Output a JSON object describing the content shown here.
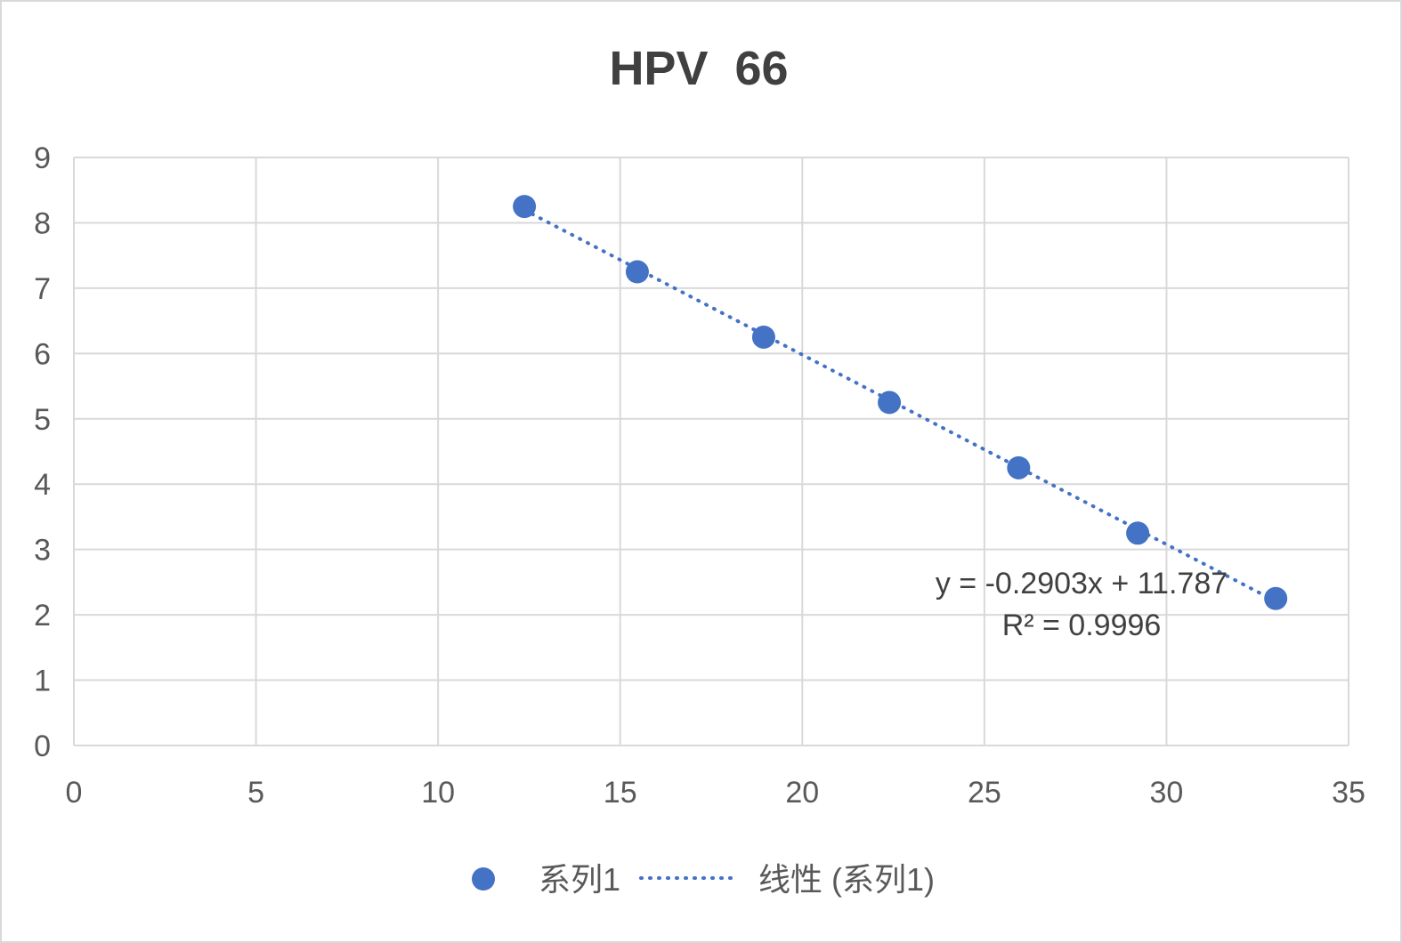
{
  "chart_data": {
    "type": "scatter",
    "title": "HPV  66",
    "xlim": [
      0,
      35
    ],
    "ylim": [
      0,
      9
    ],
    "x_ticks": [
      0,
      5,
      10,
      15,
      20,
      25,
      30,
      35
    ],
    "y_ticks": [
      0,
      1,
      2,
      3,
      4,
      5,
      6,
      7,
      8,
      9
    ],
    "grid": true,
    "legend_position": "bottom",
    "series": [
      {
        "name": "系列1",
        "color": "#4472c4",
        "x": [
          12.37,
          15.47,
          18.94,
          22.39,
          25.94,
          29.21,
          33.0
        ],
        "y": [
          8.25,
          7.25,
          6.25,
          5.25,
          4.25,
          3.25,
          2.25
        ]
      }
    ],
    "trendline": {
      "name": "线性 (系列1)",
      "type": "linear",
      "style": "dotted",
      "color": "#4472c4",
      "slope": -0.2903,
      "intercept": 11.787,
      "equation": "y = -0.2903x + 11.787",
      "r_squared": "R² = 0.9996"
    }
  }
}
